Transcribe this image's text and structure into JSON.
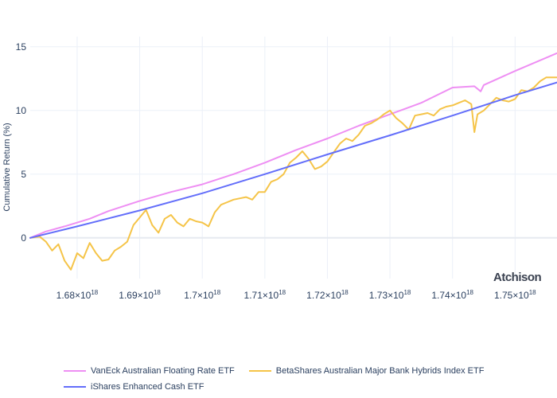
{
  "brand": {
    "logo_text": "Atchison"
  },
  "chart_data": {
    "type": "line",
    "title": "",
    "xlabel": "",
    "ylabel": "Cumulative Return (%)",
    "xlim": [
      1.6725e+18,
      1.7567e+18
    ],
    "ylim": [
      -3.2,
      15.8
    ],
    "x_ticks": [
      {
        "value": 1.68e+18,
        "base": "1.68×10",
        "exp": "18"
      },
      {
        "value": 1.69e+18,
        "base": "1.69×10",
        "exp": "18"
      },
      {
        "value": 1.7e+18,
        "base": "1.7×10",
        "exp": "18"
      },
      {
        "value": 1.71e+18,
        "base": "1.71×10",
        "exp": "18"
      },
      {
        "value": 1.72e+18,
        "base": "1.72×10",
        "exp": "18"
      },
      {
        "value": 1.73e+18,
        "base": "1.73×10",
        "exp": "18"
      },
      {
        "value": 1.74e+18,
        "base": "1.74×10",
        "exp": "18"
      },
      {
        "value": 1.75e+18,
        "base": "1.75×10",
        "exp": "18"
      }
    ],
    "y_ticks": [
      0,
      5,
      10,
      15
    ],
    "grid": true,
    "legend_position": "bottom",
    "series": [
      {
        "name": "VanEck Australian Floating Rate ETF",
        "color": "#ee8ff3",
        "x": [
          1.6725e+18,
          1.675e+18,
          1.678e+18,
          1.682e+18,
          1.685e+18,
          1.69e+18,
          1.695e+18,
          1.7e+18,
          1.705e+18,
          1.71e+18,
          1.715e+18,
          1.72e+18,
          1.725e+18,
          1.73e+18,
          1.735e+18,
          1.74e+18,
          1.7435e+18,
          1.7445e+18,
          1.745e+18,
          1.75e+18,
          1.7567e+18
        ],
        "y": [
          0.0,
          0.5,
          0.9,
          1.5,
          2.1,
          2.9,
          3.6,
          4.2,
          5.0,
          5.9,
          6.9,
          7.8,
          8.8,
          9.7,
          10.6,
          11.8,
          11.9,
          11.5,
          12.0,
          13.1,
          14.5
        ]
      },
      {
        "name": "BetaShares Australian Major Bank Hybrids Index ETF",
        "color": "#f5c448",
        "x": [
          1.6725e+18,
          1.674e+18,
          1.675e+18,
          1.676e+18,
          1.677e+18,
          1.678e+18,
          1.679e+18,
          1.68e+18,
          1.681e+18,
          1.682e+18,
          1.683e+18,
          1.684e+18,
          1.685e+18,
          1.686e+18,
          1.687e+18,
          1.688e+18,
          1.689e+18,
          1.69e+18,
          1.691e+18,
          1.692e+18,
          1.693e+18,
          1.694e+18,
          1.695e+18,
          1.696e+18,
          1.697e+18,
          1.698e+18,
          1.699e+18,
          1.7e+18,
          1.701e+18,
          1.702e+18,
          1.703e+18,
          1.704e+18,
          1.705e+18,
          1.706e+18,
          1.707e+18,
          1.708e+18,
          1.709e+18,
          1.71e+18,
          1.711e+18,
          1.712e+18,
          1.713e+18,
          1.714e+18,
          1.715e+18,
          1.716e+18,
          1.717e+18,
          1.718e+18,
          1.719e+18,
          1.72e+18,
          1.721e+18,
          1.722e+18,
          1.723e+18,
          1.724e+18,
          1.725e+18,
          1.726e+18,
          1.727e+18,
          1.728e+18,
          1.729e+18,
          1.73e+18,
          1.731e+18,
          1.732e+18,
          1.733e+18,
          1.734e+18,
          1.735e+18,
          1.736e+18,
          1.737e+18,
          1.738e+18,
          1.739e+18,
          1.74e+18,
          1.741e+18,
          1.742e+18,
          1.743e+18,
          1.7435e+18,
          1.744e+18,
          1.745e+18,
          1.746e+18,
          1.747e+18,
          1.748e+18,
          1.749e+18,
          1.75e+18,
          1.751e+18,
          1.752e+18,
          1.753e+18,
          1.754e+18,
          1.755e+18,
          1.7567e+18
        ],
        "y": [
          0.0,
          0.1,
          -0.3,
          -1.0,
          -0.5,
          -1.8,
          -2.5,
          -1.2,
          -1.6,
          -0.4,
          -1.2,
          -1.8,
          -1.7,
          -1.0,
          -0.7,
          -0.3,
          1.0,
          1.6,
          2.2,
          1.0,
          0.4,
          1.5,
          1.8,
          1.2,
          0.9,
          1.5,
          1.3,
          1.2,
          0.9,
          2.0,
          2.6,
          2.8,
          3.0,
          3.1,
          3.2,
          3.0,
          3.6,
          3.6,
          4.4,
          4.6,
          5.0,
          5.9,
          6.3,
          6.8,
          6.2,
          5.4,
          5.6,
          6.0,
          6.7,
          7.4,
          7.8,
          7.6,
          8.1,
          8.8,
          9.0,
          9.3,
          9.7,
          10.0,
          9.4,
          9.0,
          8.5,
          9.6,
          9.7,
          9.8,
          9.6,
          10.1,
          10.3,
          10.4,
          10.6,
          10.8,
          10.5,
          8.3,
          9.7,
          10.0,
          10.5,
          11.0,
          10.8,
          10.7,
          10.9,
          11.6,
          11.5,
          11.8,
          12.3,
          12.6,
          12.6
        ]
      },
      {
        "name": "iShares Enhanced Cash ETF",
        "color": "#636efa",
        "x": [
          1.6725e+18,
          1.68e+18,
          1.69e+18,
          1.7e+18,
          1.71e+18,
          1.72e+18,
          1.73e+18,
          1.74e+18,
          1.75e+18,
          1.7567e+18
        ],
        "y": [
          0.0,
          0.9,
          2.15,
          3.5,
          5.0,
          6.55,
          8.05,
          9.6,
          11.2,
          12.2
        ]
      }
    ]
  }
}
